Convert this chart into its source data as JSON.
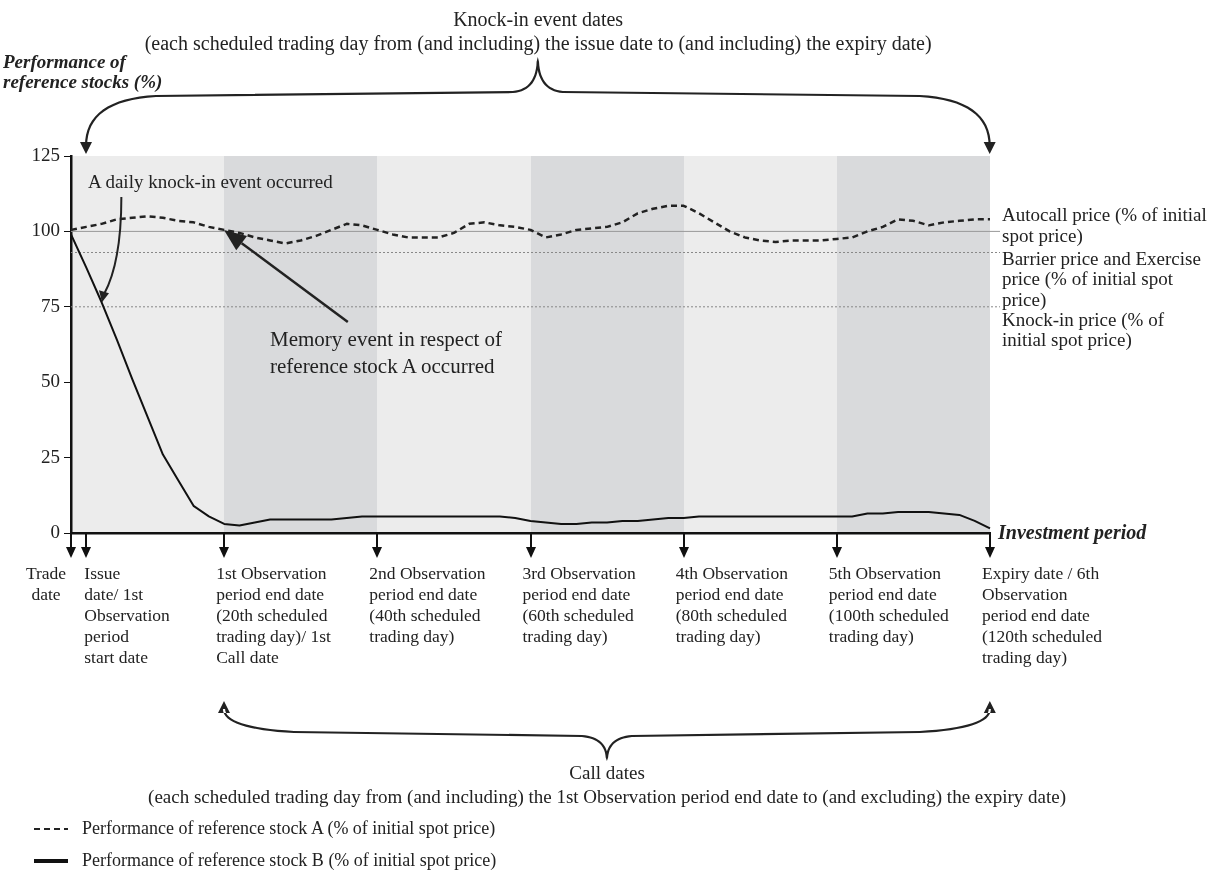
{
  "chart_data": {
    "type": "line",
    "title": "Knock-in event dates",
    "subtitle": "(each scheduled trading day from (and including) the issue date to (and including) the expiry date)",
    "xlabel": "Investment period",
    "ylabel": "Performance of reference stocks (%)",
    "categories": [
      null,
      null,
      null,
      null,
      null,
      null,
      null,
      null,
      null,
      null,
      null,
      null,
      null,
      null,
      null,
      null,
      null,
      null,
      null,
      null,
      null,
      null,
      null,
      null,
      null,
      null,
      null,
      null,
      null,
      null,
      null,
      null,
      null,
      null,
      null,
      null,
      null,
      null,
      null,
      null,
      null,
      null,
      null,
      null,
      null,
      null,
      null,
      null,
      null,
      null,
      null,
      null,
      null,
      null,
      null,
      null,
      null,
      null,
      null,
      null,
      null
    ],
    "ylim": [
      0,
      125
    ],
    "yticks": [
      0,
      25,
      50,
      75,
      100,
      125
    ],
    "grid": false,
    "legend": "bottom left",
    "series": [
      {
        "name": "Performance of reference stock A (% of initial spot price)",
        "color": "#222222",
        "line_style": "dashed",
        "values": [
          100.5,
          101.5,
          102.5,
          104,
          104.5,
          105,
          104.5,
          103.5,
          103,
          101.5,
          100.5,
          99.5,
          98,
          97,
          96,
          97,
          98.5,
          100.5,
          102.5,
          102,
          100.5,
          99,
          98,
          98,
          98,
          99.5,
          102.5,
          103,
          102,
          101.5,
          100.5,
          98,
          99,
          100.5,
          101,
          101.5,
          103,
          106,
          107.5,
          108.5,
          108.5,
          106,
          103,
          100,
          98,
          97,
          96.5,
          97,
          97,
          97,
          97.5,
          98,
          100,
          101.5,
          104,
          103.5,
          102,
          103,
          103.5,
          104,
          104
        ]
      },
      {
        "name": "Performance of reference stock B (% of initial spot price)",
        "color": "#111111",
        "line_style": "solid",
        "values": [
          99,
          88,
          76.5,
          64,
          51,
          38.5,
          26,
          17.5,
          9,
          5.5,
          3,
          2.5,
          3.5,
          4.5,
          4.5,
          4.5,
          4.5,
          4.5,
          5,
          5.5,
          5.5,
          5.5,
          5.5,
          5.5,
          5.5,
          5.5,
          5.5,
          5.5,
          5.5,
          5,
          4,
          3.5,
          3,
          3,
          3.5,
          3.5,
          4,
          4,
          4.5,
          5,
          5,
          5.5,
          5.5,
          5.5,
          5.5,
          5.5,
          5.5,
          5.5,
          5.5,
          5.5,
          5.5,
          5.5,
          6.5,
          6.5,
          7,
          7,
          7,
          6.5,
          6,
          4,
          1.5
        ]
      }
    ],
    "ref_lines": [
      {
        "axis": "y",
        "value": 100,
        "label": "Autocall price (% of initial spot price)",
        "color": "#999999",
        "line_style": "solid"
      },
      {
        "axis": "y",
        "value": 93,
        "label": "Barrier price and Exercise price (% of initial spot price)",
        "color": "#888888",
        "line_style": "dotted"
      },
      {
        "axis": "y",
        "value": 75,
        "label": "Knock-in price (% of initial spot price)",
        "color": "#888888",
        "line_style": "dotted"
      }
    ],
    "annotations": [
      "A daily knock-in event occurred",
      "Memory event in respect of reference stock A occurred",
      "Trade date",
      "Issue date/ 1st Observation period start date",
      "1st Observation period end date (20th scheduled trading day)/ 1st Call date",
      "2nd Observation period end date (40th scheduled trading day)",
      "3rd Observation period end date (60th scheduled trading day)",
      "4th Observation period end date (80th scheduled trading day)",
      "5th Observation period end date (100th scheduled trading day)",
      "Expiry date / 6th Observation period end date (120th scheduled trading day)",
      "Call dates",
      "(each scheduled trading day from (and including) the 1st Observation period end date to (and excluding) the expiry date)"
    ]
  }
}
